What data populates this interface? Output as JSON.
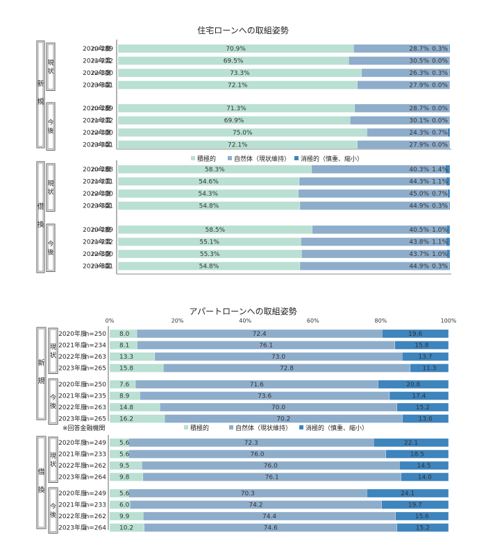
{
  "colors": {
    "positive": "#b9e0d2",
    "neutral": "#8eadcb",
    "negative": "#3e84bd",
    "frame": "#555555"
  },
  "legend": {
    "positive": "積極的",
    "neutral": "自然体（現状維持）",
    "negative": "消極的（慎重、縮小）"
  },
  "footnote": "※回答金融機関",
  "chart_data": [
    {
      "type": "bar",
      "stacked": true,
      "orientation": "horizontal",
      "title": "住宅ローンへの取組姿勢",
      "value_format": "percent",
      "groups": [
        {
          "label": "新規",
          "subgroups": [
            {
              "label": "現状",
              "rows": [
                {
                  "year": "2020年度",
                  "n": "n=289",
                  "values": [
                    70.9,
                    28.7,
                    0.3
                  ]
                },
                {
                  "year": "2021年度",
                  "n": "n=272",
                  "values": [
                    69.5,
                    30.5,
                    0.0
                  ]
                },
                {
                  "year": "2022年度",
                  "n": "n=300",
                  "values": [
                    73.3,
                    26.3,
                    0.3
                  ]
                },
                {
                  "year": "2023年度",
                  "n": "n=301",
                  "values": [
                    72.1,
                    27.9,
                    0.0
                  ]
                }
              ]
            },
            {
              "label": "今後",
              "rows": [
                {
                  "year": "2020年度",
                  "n": "n=289",
                  "values": [
                    71.3,
                    28.7,
                    0.0
                  ]
                },
                {
                  "year": "2021年度",
                  "n": "n=272",
                  "values": [
                    69.9,
                    30.1,
                    0.0
                  ]
                },
                {
                  "year": "2022年度",
                  "n": "n=300",
                  "values": [
                    75.0,
                    24.3,
                    0.7
                  ]
                },
                {
                  "year": "2023年度",
                  "n": "n=301",
                  "values": [
                    72.1,
                    27.9,
                    0.0
                  ]
                }
              ]
            }
          ]
        },
        {
          "label": "借換",
          "subgroups": [
            {
              "label": "現状",
              "rows": [
                {
                  "year": "2020年度",
                  "n": "n=288",
                  "values": [
                    58.3,
                    40.3,
                    1.4
                  ]
                },
                {
                  "year": "2021年度",
                  "n": "n=271",
                  "values": [
                    54.6,
                    44.3,
                    1.1
                  ]
                },
                {
                  "year": "2022年度",
                  "n": "n=300",
                  "values": [
                    54.3,
                    45.0,
                    0.7
                  ]
                },
                {
                  "year": "2023年度",
                  "n": "n=301",
                  "values": [
                    54.8,
                    44.9,
                    0.3
                  ]
                }
              ]
            },
            {
              "label": "今後",
              "rows": [
                {
                  "year": "2020年度",
                  "n": "n=289",
                  "values": [
                    58.5,
                    40.5,
                    1.0
                  ]
                },
                {
                  "year": "2021年度",
                  "n": "n=272",
                  "values": [
                    55.1,
                    43.8,
                    1.1
                  ]
                },
                {
                  "year": "2022年度",
                  "n": "n=300",
                  "values": [
                    55.3,
                    43.7,
                    1.0
                  ]
                },
                {
                  "year": "2023年度",
                  "n": "n=301",
                  "values": [
                    54.8,
                    44.9,
                    0.3
                  ]
                }
              ]
            }
          ]
        }
      ]
    },
    {
      "type": "bar",
      "stacked": true,
      "orientation": "horizontal",
      "title": "アパートローンへの取組姿勢",
      "value_format": "plain",
      "xlim": [
        0,
        100
      ],
      "xticks": [
        "0%",
        "20%",
        "40%",
        "60%",
        "80%",
        "100%"
      ],
      "groups": [
        {
          "label": "新規",
          "subgroups": [
            {
              "label": "現状",
              "rows": [
                {
                  "year": "2020年度",
                  "n": "n=250",
                  "values": [
                    8.0,
                    72.4,
                    19.6
                  ]
                },
                {
                  "year": "2021年度",
                  "n": "n=234",
                  "values": [
                    8.1,
                    76.1,
                    15.8
                  ]
                },
                {
                  "year": "2022年度",
                  "n": "n=263",
                  "values": [
                    13.3,
                    73.0,
                    13.7
                  ]
                },
                {
                  "year": "2023年度",
                  "n": "n=265",
                  "values": [
                    15.8,
                    72.8,
                    11.3
                  ]
                }
              ]
            },
            {
              "label": "今後",
              "rows": [
                {
                  "year": "2020年度",
                  "n": "n=250",
                  "values": [
                    7.6,
                    71.6,
                    20.8
                  ]
                },
                {
                  "year": "2021年度",
                  "n": "n=235",
                  "values": [
                    8.9,
                    73.6,
                    17.4
                  ]
                },
                {
                  "year": "2022年度",
                  "n": "n=263",
                  "values": [
                    14.8,
                    70.0,
                    15.2
                  ]
                },
                {
                  "year": "2023年度",
                  "n": "n=265",
                  "values": [
                    16.2,
                    70.2,
                    13.6
                  ]
                }
              ]
            }
          ]
        },
        {
          "label": "借換",
          "subgroups": [
            {
              "label": "現状",
              "rows": [
                {
                  "year": "2020年度",
                  "n": "n=249",
                  "values": [
                    5.6,
                    72.3,
                    22.1
                  ]
                },
                {
                  "year": "2021年度",
                  "n": "n=233",
                  "values": [
                    5.6,
                    76.0,
                    18.5
                  ]
                },
                {
                  "year": "2022年度",
                  "n": "n=262",
                  "values": [
                    9.5,
                    76.0,
                    14.5
                  ]
                },
                {
                  "year": "2023年度",
                  "n": "n=264",
                  "values": [
                    9.8,
                    76.1,
                    14.0
                  ]
                }
              ]
            },
            {
              "label": "今後",
              "rows": [
                {
                  "year": "2020年度",
                  "n": "n=249",
                  "values": [
                    5.6,
                    70.3,
                    24.1
                  ]
                },
                {
                  "year": "2021年度",
                  "n": "n=233",
                  "values": [
                    6.0,
                    74.2,
                    19.7
                  ]
                },
                {
                  "year": "2022年度",
                  "n": "n=262",
                  "values": [
                    9.9,
                    74.4,
                    15.6
                  ]
                },
                {
                  "year": "2023年度",
                  "n": "n=264",
                  "values": [
                    10.2,
                    74.6,
                    15.2
                  ]
                }
              ]
            }
          ]
        }
      ]
    }
  ]
}
